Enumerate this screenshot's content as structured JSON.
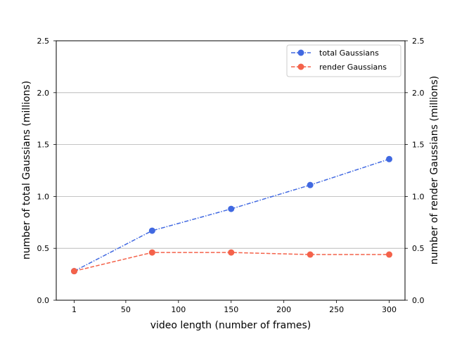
{
  "chart_data": {
    "type": "line",
    "title": "",
    "xlabel": "video length (number of frames)",
    "ylabel_left": "number of total Gaussians (millions)",
    "ylabel_right": "number of render Gaussians (millions)",
    "x": [
      1,
      75,
      150,
      225,
      300
    ],
    "x_ticks": [
      1,
      50,
      100,
      150,
      200,
      250,
      300
    ],
    "x_tick_labels": [
      "1",
      "50",
      "100",
      "150",
      "200",
      "250",
      "300"
    ],
    "xlim": [
      -16,
      315
    ],
    "ylim": [
      0,
      2.5
    ],
    "y_ticks": [
      0,
      0.5,
      1.0,
      1.5,
      2.0,
      2.5
    ],
    "y_tick_labels": [
      "0.0",
      "0.5",
      "1.0",
      "1.5",
      "2.0",
      "2.5"
    ],
    "grid": "horizontal",
    "legend_position": "top-right",
    "series": [
      {
        "name": "total Gaussians",
        "axis": "left",
        "values": [
          0.28,
          0.67,
          0.88,
          1.11,
          1.36
        ],
        "color": "#4169e1",
        "line_style": "dash-dot",
        "marker": "circle"
      },
      {
        "name": "render Gaussians",
        "axis": "right",
        "values": [
          0.28,
          0.46,
          0.46,
          0.44,
          0.44
        ],
        "color": "#f4624a",
        "line_style": "dashed",
        "marker": "circle"
      }
    ]
  }
}
